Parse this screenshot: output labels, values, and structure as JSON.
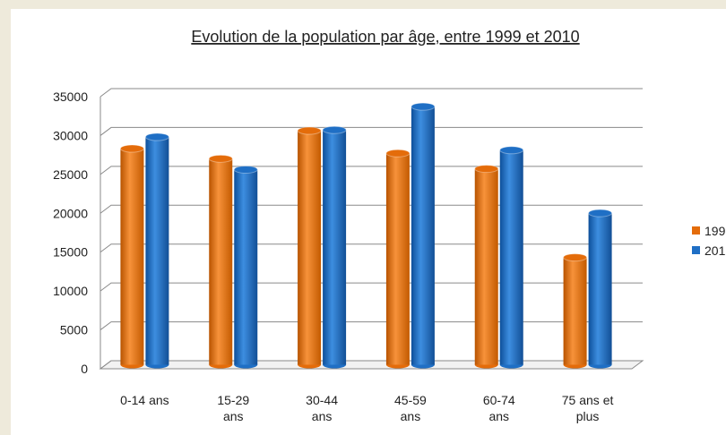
{
  "chart_data": {
    "type": "bar",
    "title": "Evolution de la population par âge, entre 1999 et 2010",
    "categories": [
      "0-14 ans",
      "15-29 ans",
      "30-44 ans",
      "45-59 ans",
      "60-74 ans",
      "75 ans et plus"
    ],
    "series": [
      {
        "name": "199",
        "color": "#e46c0a",
        "values": [
          27800,
          26500,
          30100,
          27200,
          25200,
          13800
        ]
      },
      {
        "name": "201",
        "color": "#1f6fc5",
        "values": [
          29300,
          25100,
          30200,
          33200,
          27600,
          19500
        ]
      }
    ],
    "ylim": [
      0,
      35000
    ],
    "yticks": [
      0,
      5000,
      10000,
      15000,
      20000,
      25000,
      30000,
      35000
    ],
    "grid": true,
    "legend": "right"
  }
}
